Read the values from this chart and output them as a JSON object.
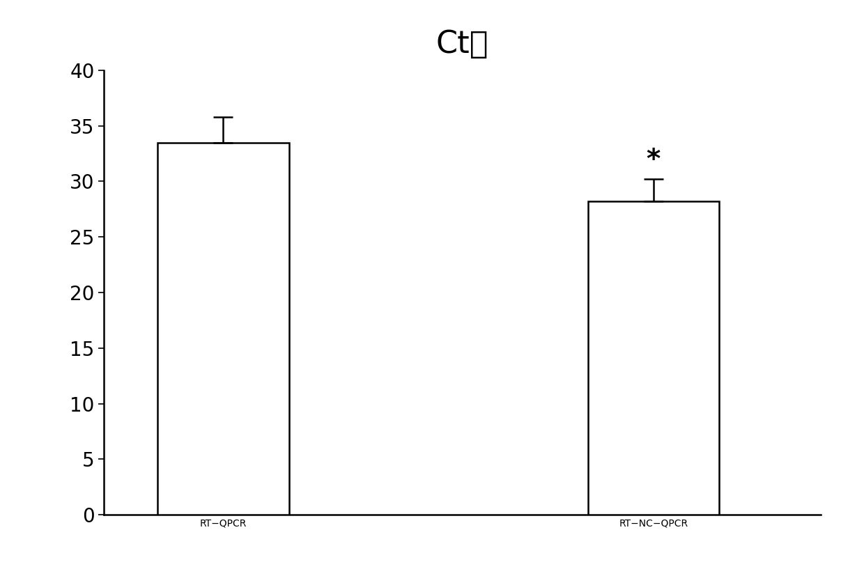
{
  "title": "Ct値",
  "categories": [
    "RT−QPCR",
    "RT−NC−QPCR"
  ],
  "values": [
    33.5,
    28.2
  ],
  "errors": [
    2.3,
    2.0
  ],
  "ylim": [
    0,
    40
  ],
  "yticks": [
    0,
    5,
    10,
    15,
    20,
    25,
    30,
    35,
    40
  ],
  "bar_color": "#ffffff",
  "bar_edgecolor": "#000000",
  "bar_linewidth": 1.8,
  "bar_width": 0.55,
  "errorbar_color": "#000000",
  "errorbar_linewidth": 1.8,
  "errorbar_capsize": 10,
  "errorbar_capthick": 1.8,
  "title_fontsize": 32,
  "tick_fontsize": 20,
  "xlabel_fontsize": 18,
  "annotation_star": "*",
  "annotation_fontsize": 28,
  "background_color": "#ffffff",
  "bar_positions": [
    1,
    2.8
  ],
  "xlim": [
    0.5,
    3.5
  ]
}
